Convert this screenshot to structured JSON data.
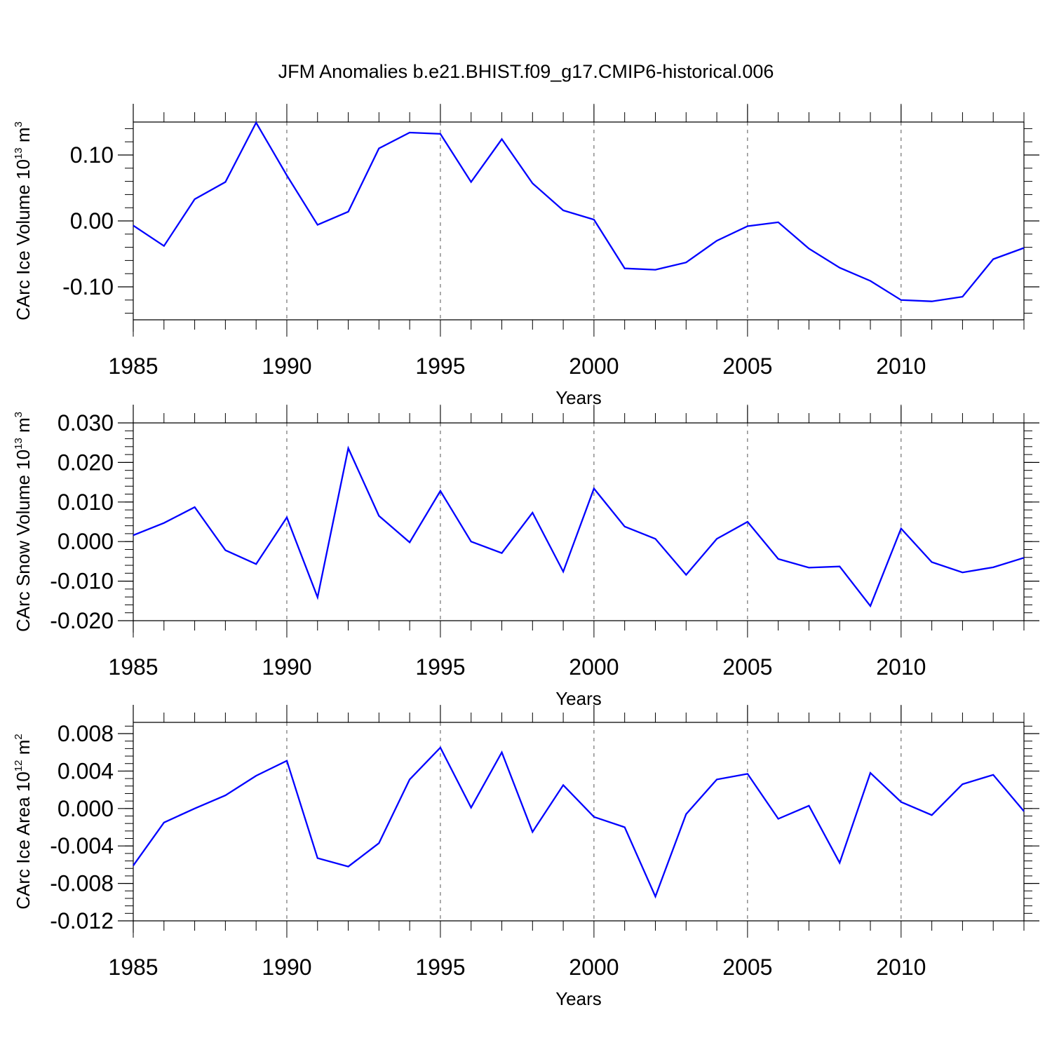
{
  "figure": {
    "title": "JFM Anomalies b.e21.BHIST.f09_g17.CMIP6-historical.006"
  },
  "chart_data": [
    {
      "type": "line",
      "title": "",
      "xlabel": "Years",
      "ylabel": {
        "prefix": "CArc Ice Volume 10",
        "exponent": "13",
        "unit": " m",
        "unit_exponent": "3"
      },
      "xlim": [
        1985,
        2014
      ],
      "ylim": [
        -0.15,
        0.15
      ],
      "x_ticks": [
        1985,
        1990,
        1995,
        2000,
        2005,
        2010
      ],
      "x_tick_labels": [
        "1985",
        "1990",
        "1995",
        "2000",
        "2005",
        "2010"
      ],
      "y_ticks": [
        -0.1,
        0.0,
        0.1
      ],
      "y_tick_labels": [
        "-0.10",
        "0.00",
        "0.10"
      ],
      "y_minor_step": 0.02,
      "line_color": "#0000ff",
      "series": [
        {
          "name": "Ice Volume",
          "x": [
            1985,
            1986,
            1987,
            1988,
            1989,
            1990,
            1991,
            1992,
            1993,
            1994,
            1995,
            1996,
            1997,
            1998,
            1999,
            2000,
            2001,
            2002,
            2003,
            2004,
            2005,
            2006,
            2007,
            2008,
            2009,
            2010,
            2011,
            2012,
            2013,
            2014
          ],
          "values": [
            -0.007,
            -0.038,
            0.033,
            0.059,
            0.149,
            0.069,
            -0.006,
            0.014,
            0.11,
            0.134,
            0.132,
            0.059,
            0.124,
            0.057,
            0.016,
            0.002,
            -0.072,
            -0.074,
            -0.063,
            -0.03,
            -0.008,
            -0.002,
            -0.042,
            -0.071,
            -0.091,
            -0.12,
            -0.122,
            -0.115,
            -0.058,
            -0.041
          ]
        }
      ]
    },
    {
      "type": "line",
      "title": "",
      "xlabel": "Years",
      "ylabel": {
        "prefix": "CArc Snow Volume 10",
        "exponent": "13",
        "unit": " m",
        "unit_exponent": "3"
      },
      "xlim": [
        1985,
        2014
      ],
      "ylim": [
        -0.02,
        0.03
      ],
      "x_ticks": [
        1985,
        1990,
        1995,
        2000,
        2005,
        2010
      ],
      "x_tick_labels": [
        "1985",
        "1990",
        "1995",
        "2000",
        "2005",
        "2010"
      ],
      "y_ticks": [
        -0.02,
        -0.01,
        0.0,
        0.01,
        0.02,
        0.03
      ],
      "y_tick_labels": [
        "-0.020",
        "-0.010",
        "0.000",
        "0.010",
        "0.020",
        "0.030"
      ],
      "y_minor_step": 0.002,
      "line_color": "#0000ff",
      "series": [
        {
          "name": "Snow Volume",
          "x": [
            1985,
            1986,
            1987,
            1988,
            1989,
            1990,
            1991,
            1992,
            1993,
            1994,
            1995,
            1996,
            1997,
            1998,
            1999,
            2000,
            2001,
            2002,
            2003,
            2004,
            2005,
            2006,
            2007,
            2008,
            2009,
            2010,
            2011,
            2012,
            2013,
            2014
          ],
          "values": [
            0.0016,
            0.0047,
            0.0087,
            -0.0022,
            -0.0057,
            0.0061,
            -0.0141,
            0.0236,
            0.0065,
            -0.0002,
            0.0128,
            0.0,
            -0.0029,
            0.0073,
            -0.0076,
            0.0134,
            0.0038,
            0.0007,
            -0.0084,
            0.0007,
            0.005,
            -0.0044,
            -0.0066,
            -0.0063,
            -0.0163,
            0.0033,
            -0.0052,
            -0.0078,
            -0.0065,
            -0.0041
          ]
        }
      ]
    },
    {
      "type": "line",
      "title": "",
      "xlabel": "Years",
      "ylabel": {
        "prefix": "CArc Ice Area 10",
        "exponent": "12",
        "unit": " m",
        "unit_exponent": "2"
      },
      "xlim": [
        1985,
        2014
      ],
      "ylim": [
        -0.012,
        0.0092
      ],
      "x_ticks": [
        1985,
        1990,
        1995,
        2000,
        2005,
        2010
      ],
      "x_tick_labels": [
        "1985",
        "1990",
        "1995",
        "2000",
        "2005",
        "2010"
      ],
      "y_ticks": [
        -0.012,
        -0.008,
        -0.004,
        0.0,
        0.004,
        0.008
      ],
      "y_tick_labels": [
        "-0.012",
        "-0.008",
        "-0.004",
        "0.000",
        "0.004",
        "0.008"
      ],
      "y_minor_step": 0.0008,
      "line_color": "#0000ff",
      "series": [
        {
          "name": "Ice Area",
          "x": [
            1985,
            1986,
            1987,
            1988,
            1989,
            1990,
            1991,
            1992,
            1993,
            1994,
            1995,
            1996,
            1997,
            1998,
            1999,
            2000,
            2001,
            2002,
            2003,
            2004,
            2005,
            2006,
            2007,
            2008,
            2009,
            2010,
            2011,
            2012,
            2013,
            2014
          ],
          "values": [
            -0.0061,
            -0.0015,
            -0.0,
            0.0014,
            0.0035,
            0.0051,
            -0.0053,
            -0.0062,
            -0.0037,
            0.0031,
            0.0065,
            0.0001,
            0.006,
            -0.0025,
            0.0025,
            -0.0009,
            -0.002,
            -0.0094,
            -0.0006,
            0.0031,
            0.0037,
            -0.0011,
            0.0003,
            -0.0058,
            0.0038,
            0.0007,
            -0.0007,
            0.0026,
            0.0036,
            -0.0003
          ]
        }
      ]
    }
  ]
}
